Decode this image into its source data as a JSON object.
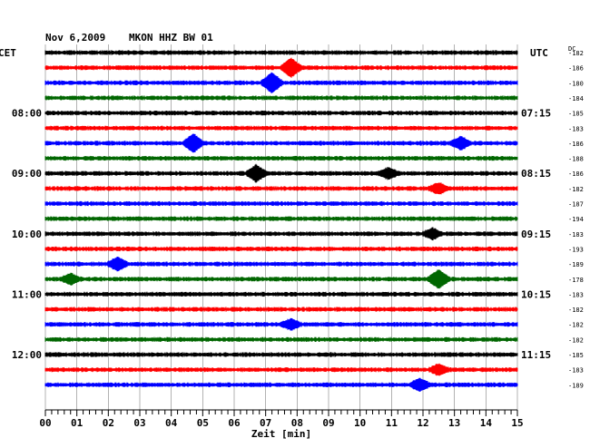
{
  "header": {
    "date": "Nov 6,2009",
    "station": "MKON HHZ BW 01"
  },
  "labels": {
    "left_timezone": "CET",
    "right_timezone": "UTC",
    "dc_header": "DC",
    "x_axis_label": "Zeit [min]"
  },
  "colors": {
    "trace_cycle": [
      "#000000",
      "#ff0000",
      "#0000ff",
      "#006600"
    ],
    "grid": "#808080",
    "background": "#ffffff"
  },
  "chart_data": {
    "type": "line",
    "description_kind": "helicorder seismogram",
    "xlabel": "Zeit [min]",
    "xlim": [
      0,
      15
    ],
    "x_ticks": [
      "00",
      "01",
      "02",
      "03",
      "04",
      "05",
      "06",
      "07",
      "08",
      "09",
      "10",
      "11",
      "12",
      "13",
      "14",
      "15"
    ],
    "trace_count": 23,
    "minutes_per_trace": 15,
    "left_hour_labels": [
      {
        "trace": 4,
        "label": "08:00"
      },
      {
        "trace": 8,
        "label": "09:00"
      },
      {
        "trace": 12,
        "label": "10:00"
      },
      {
        "trace": 16,
        "label": "11:00"
      },
      {
        "trace": 20,
        "label": "12:00"
      }
    ],
    "right_hour_labels": [
      {
        "trace": 4,
        "label": "07:15"
      },
      {
        "trace": 8,
        "label": "08:15"
      },
      {
        "trace": 12,
        "label": "09:15"
      },
      {
        "trace": 16,
        "label": "10:15"
      },
      {
        "trace": 20,
        "label": "11:15"
      }
    ],
    "dc_offsets": [
      "-182",
      "-186",
      "-180",
      "-184",
      "-185",
      "-183",
      "-186",
      "-188",
      "-186",
      "-182",
      "-187",
      "-194",
      "-183",
      "-193",
      "-189",
      "-178",
      "-183",
      "-182",
      "-182",
      "-182",
      "-185",
      "-183",
      "-189"
    ],
    "events": [
      {
        "trace": 1,
        "minute": 7.8,
        "amplitude": 9
      },
      {
        "trace": 2,
        "minute": 7.2,
        "amplitude": 10
      },
      {
        "trace": 6,
        "minute": 4.7,
        "amplitude": 9
      },
      {
        "trace": 6,
        "minute": 13.2,
        "amplitude": 6
      },
      {
        "trace": 8,
        "minute": 6.7,
        "amplitude": 8
      },
      {
        "trace": 8,
        "minute": 10.9,
        "amplitude": 5
      },
      {
        "trace": 9,
        "minute": 12.5,
        "amplitude": 5
      },
      {
        "trace": 12,
        "minute": 12.3,
        "amplitude": 5
      },
      {
        "trace": 14,
        "minute": 2.3,
        "amplitude": 6
      },
      {
        "trace": 15,
        "minute": 0.8,
        "amplitude": 5
      },
      {
        "trace": 15,
        "minute": 12.5,
        "amplitude": 9
      },
      {
        "trace": 18,
        "minute": 7.8,
        "amplitude": 5
      },
      {
        "trace": 21,
        "minute": 12.5,
        "amplitude": 5
      },
      {
        "trace": 22,
        "minute": 11.9,
        "amplitude": 6
      }
    ]
  }
}
